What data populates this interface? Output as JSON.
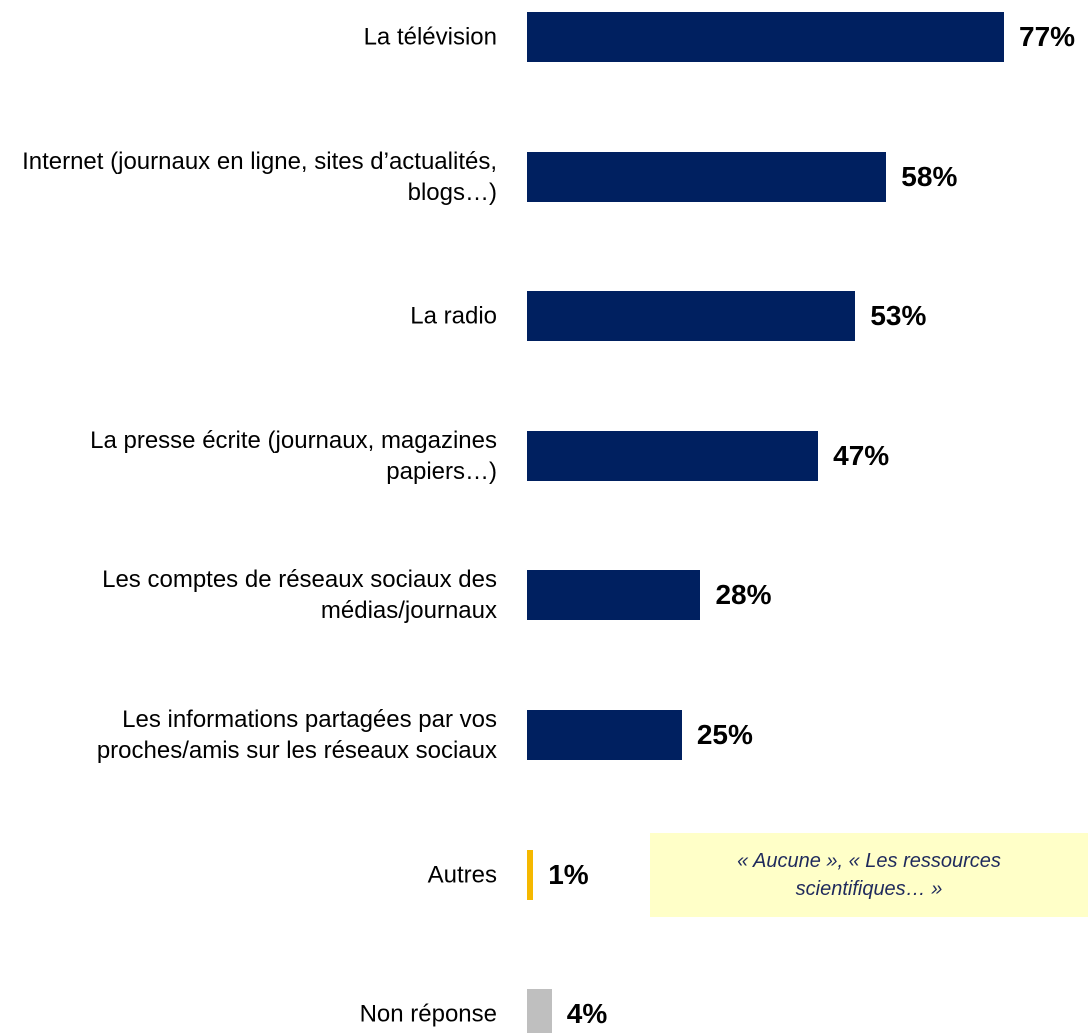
{
  "chart_data": {
    "type": "bar",
    "orientation": "horizontal",
    "categories": [
      "La télévision",
      "Internet (journaux en ligne, sites d’actualités, blogs…)",
      "La radio",
      "La presse écrite (journaux, magazines papiers…)",
      "Les comptes de réseaux sociaux des médias/journaux",
      "Les informations partagées par vos proches/amis sur les réseaux sociaux",
      "Autres",
      "Non réponse"
    ],
    "values": [
      77,
      58,
      53,
      47,
      28,
      25,
      1,
      4
    ],
    "value_labels": [
      "77%",
      "58%",
      "53%",
      "47%",
      "28%",
      "25%",
      "1%",
      "4%"
    ],
    "colors": [
      "#002060",
      "#002060",
      "#002060",
      "#002060",
      "#002060",
      "#002060",
      "#f5b800",
      "#bfbfbf"
    ],
    "annotations": [
      {
        "text": "« Aucune », « Les ressources scientifiques… »",
        "category_index": 6
      }
    ]
  }
}
